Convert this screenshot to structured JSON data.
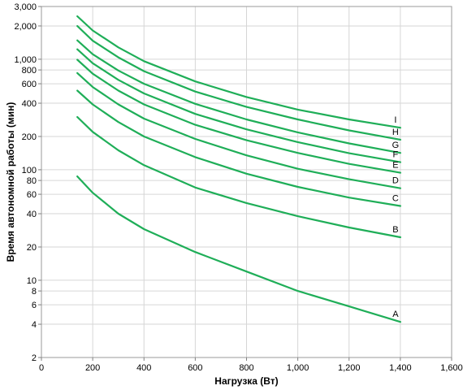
{
  "chart_data": {
    "type": "line",
    "title": "",
    "xlabel": "Нагрузка (Вт)",
    "ylabel": "Время автономной работы (мин)",
    "xlim": [
      0,
      1600
    ],
    "ylim": [
      2,
      3000
    ],
    "yscale": "log",
    "grid": true,
    "legend": "inline labels at right end of each line",
    "line_color": "#1fae58",
    "x_ticks": [
      {
        "value": 0,
        "label": "0"
      },
      {
        "value": 200,
        "label": "200"
      },
      {
        "value": 400,
        "label": "400"
      },
      {
        "value": 600,
        "label": "600"
      },
      {
        "value": 800,
        "label": "800"
      },
      {
        "value": 1000,
        "label": "1,000"
      },
      {
        "value": 1200,
        "label": "1,200"
      },
      {
        "value": 1400,
        "label": "1,400"
      },
      {
        "value": 1600,
        "label": "1,600"
      }
    ],
    "y_ticks": [
      {
        "value": 2,
        "label": "2"
      },
      {
        "value": 4,
        "label": "4"
      },
      {
        "value": 6,
        "label": "6"
      },
      {
        "value": 8,
        "label": "8"
      },
      {
        "value": 10,
        "label": "10"
      },
      {
        "value": 20,
        "label": "20"
      },
      {
        "value": 40,
        "label": "40"
      },
      {
        "value": 60,
        "label": "60"
      },
      {
        "value": 80,
        "label": "80"
      },
      {
        "value": 100,
        "label": "100"
      },
      {
        "value": 200,
        "label": "200"
      },
      {
        "value": 400,
        "label": "400"
      },
      {
        "value": 600,
        "label": "600"
      },
      {
        "value": 800,
        "label": "800"
      },
      {
        "value": 1000,
        "label": "1,000"
      },
      {
        "value": 2000,
        "label": "2,000"
      },
      {
        "value": 3000,
        "label": "3,000"
      }
    ],
    "series": [
      {
        "name": "A",
        "x": [
          140,
          200,
          300,
          400,
          600,
          800,
          1000,
          1200,
          1400
        ],
        "values": [
          87,
          62,
          40,
          29,
          18,
          12,
          8,
          5.8,
          4.2
        ]
      },
      {
        "name": "B",
        "x": [
          140,
          200,
          300,
          400,
          600,
          800,
          1000,
          1200,
          1400
        ],
        "values": [
          300,
          220,
          150,
          110,
          69,
          50,
          38,
          30,
          24.5
        ]
      },
      {
        "name": "C",
        "x": [
          140,
          200,
          300,
          400,
          600,
          800,
          1000,
          1200,
          1400
        ],
        "values": [
          520,
          390,
          270,
          200,
          130,
          92,
          70,
          56,
          47
        ]
      },
      {
        "name": "D",
        "x": [
          140,
          200,
          300,
          400,
          600,
          800,
          1000,
          1200,
          1400
        ],
        "values": [
          750,
          560,
          390,
          290,
          190,
          135,
          102,
          82,
          68
        ]
      },
      {
        "name": "E",
        "x": [
          140,
          200,
          300,
          400,
          600,
          800,
          1000,
          1200,
          1400
        ],
        "values": [
          990,
          740,
          520,
          390,
          255,
          185,
          142,
          113,
          94
        ]
      },
      {
        "name": "F",
        "x": [
          140,
          200,
          300,
          400,
          600,
          800,
          1000,
          1200,
          1400
        ],
        "values": [
          1230,
          920,
          650,
          490,
          320,
          232,
          178,
          141,
          117
        ]
      },
      {
        "name": "G",
        "x": [
          140,
          200,
          300,
          400,
          600,
          800,
          1000,
          1200,
          1400
        ],
        "values": [
          1480,
          1110,
          790,
          600,
          395,
          285,
          218,
          173,
          142
        ]
      },
      {
        "name": "H",
        "x": [
          140,
          200,
          300,
          400,
          600,
          800,
          1000,
          1200,
          1400
        ],
        "values": [
          2000,
          1470,
          1040,
          780,
          510,
          370,
          285,
          227,
          187
        ]
      },
      {
        "name": "I",
        "x": [
          140,
          200,
          300,
          400,
          600,
          800,
          1000,
          1200,
          1400
        ],
        "values": [
          2450,
          1820,
          1280,
          960,
          630,
          455,
          350,
          285,
          240
        ]
      }
    ]
  }
}
